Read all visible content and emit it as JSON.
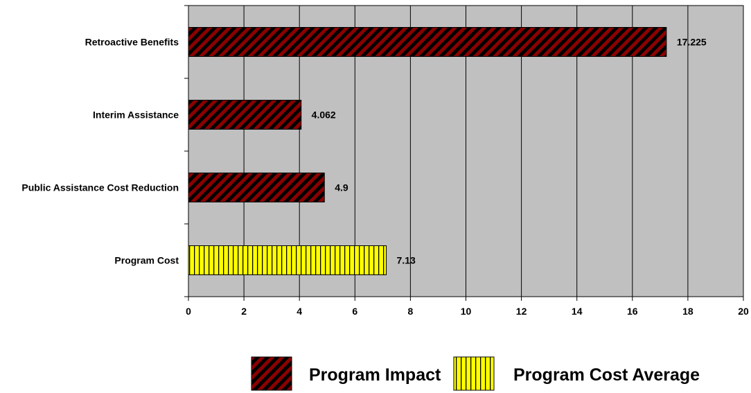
{
  "chart_data": {
    "type": "bar",
    "orientation": "horizontal",
    "categories": [
      "Retroactive Benefits",
      "Interim Assistance",
      "Public Assistance Cost Reduction",
      "Program Cost"
    ],
    "values": [
      17.225,
      4.062,
      4.9,
      7.13
    ],
    "data_labels": [
      "17.225",
      "4.062",
      "4.9",
      "7.13"
    ],
    "series_index": [
      0,
      0,
      0,
      1
    ],
    "series": [
      {
        "name": "Program Impact",
        "color": "#8b0000",
        "pattern": "diagonal-stripes"
      },
      {
        "name": "Program Cost Average",
        "color": "#ffff00",
        "pattern": "vertical-stripes"
      }
    ],
    "title": "",
    "xlabel": "",
    "ylabel": "",
    "xlim": [
      0,
      20
    ],
    "x_ticks": [
      "0",
      "2",
      "4",
      "6",
      "8",
      "10",
      "12",
      "14",
      "16",
      "18",
      "20"
    ],
    "grid": true,
    "legend_position": "bottom",
    "plot_background": "#c0c0c0"
  }
}
